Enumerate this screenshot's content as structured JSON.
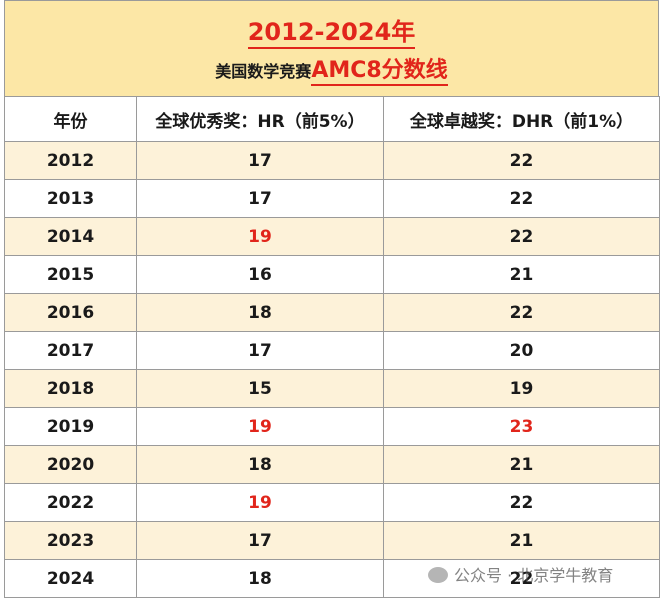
{
  "title": {
    "main": "2012-2024年",
    "sub_prefix": "美国数学竞赛",
    "sub_highlight": "AMC8分数线"
  },
  "columns": [
    "年份",
    "全球优秀奖：HR（前5%）",
    "全球卓越奖：DHR（前1%）"
  ],
  "rows": [
    {
      "year": "2012",
      "hr": "17",
      "dhr": "22",
      "hr_red": false,
      "dhr_red": false
    },
    {
      "year": "2013",
      "hr": "17",
      "dhr": "22",
      "hr_red": false,
      "dhr_red": false
    },
    {
      "year": "2014",
      "hr": "19",
      "dhr": "22",
      "hr_red": true,
      "dhr_red": false
    },
    {
      "year": "2015",
      "hr": "16",
      "dhr": "21",
      "hr_red": false,
      "dhr_red": false
    },
    {
      "year": "2016",
      "hr": "18",
      "dhr": "22",
      "hr_red": false,
      "dhr_red": false
    },
    {
      "year": "2017",
      "hr": "17",
      "dhr": "20",
      "hr_red": false,
      "dhr_red": false
    },
    {
      "year": "2018",
      "hr": "15",
      "dhr": "19",
      "hr_red": false,
      "dhr_red": false
    },
    {
      "year": "2019",
      "hr": "19",
      "dhr": "23",
      "hr_red": true,
      "dhr_red": true
    },
    {
      "year": "2020",
      "hr": "18",
      "dhr": "21",
      "hr_red": false,
      "dhr_red": false
    },
    {
      "year": "2022",
      "hr": "19",
      "dhr": "22",
      "hr_red": true,
      "dhr_red": false
    },
    {
      "year": "2023",
      "hr": "17",
      "dhr": "21",
      "hr_red": false,
      "dhr_red": false
    },
    {
      "year": "2024",
      "hr": "18",
      "dhr": "22",
      "hr_red": false,
      "dhr_red": false
    }
  ],
  "watermark": "公众号 · 北京学牛教育",
  "colors": {
    "accent_red": "#e1251b",
    "title_bg": "#fce7a6",
    "stripe_bg": "#fdf2d9"
  }
}
